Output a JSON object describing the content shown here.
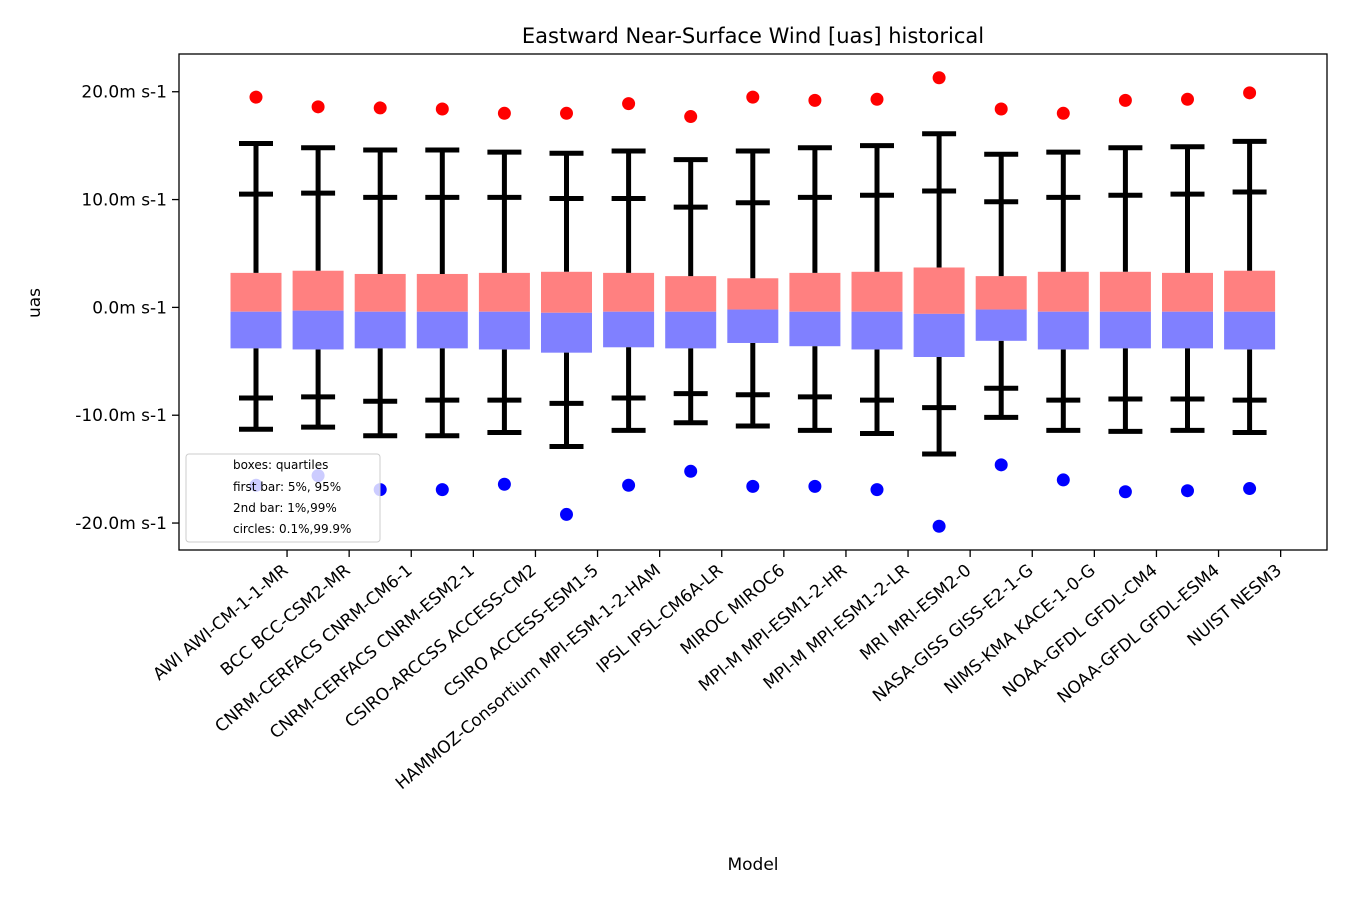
{
  "chart_data": {
    "type": "box",
    "title": "Eastward Near-Surface Wind [uas] historical",
    "xlabel": "Model",
    "ylabel": "uas",
    "ylim": [
      -22.5,
      23.5
    ],
    "yticks": [
      20,
      10,
      0,
      -10,
      -20
    ],
    "ytick_labels": [
      "20.0m s-1",
      "10.0m s-1",
      "0.0m s-1",
      "-10.0m s-1",
      "-20.0m s-1"
    ],
    "colors": {
      "upper_box": "#ff8080",
      "lower_box": "#8080ff",
      "whisker": "#000000",
      "max_circle": "#ff0000",
      "min_circle": "#0000ff"
    },
    "legend": {
      "position": "lower-left",
      "entries": [
        "boxes: quartiles",
        "first bar: 5%, 95%",
        "2nd bar: 1%,99%",
        "circles: 0.1%,99.9%"
      ]
    },
    "categories": [
      "AWI AWI-CM-1-1-MR",
      "BCC BCC-CSM2-MR",
      "CNRM-CERFACS CNRM-CM6-1",
      "CNRM-CERFACS CNRM-ESM2-1",
      "CSIRO-ARCCSS ACCESS-CM2",
      "CSIRO ACCESS-ESM1-5",
      "HAMMOZ-Consortium MPI-ESM-1-2-HAM",
      "IPSL IPSL-CM6A-LR",
      "MIROC MIROC6",
      "MPI-M MPI-ESM1-2-HR",
      "MPI-M MPI-ESM1-2-LR",
      "MRI MRI-ESM2-0",
      "NASA-GISS GISS-E2-1-G",
      "NIMS-KMA KACE-1-0-G",
      "NOAA-GFDL GFDL-CM4",
      "NOAA-GFDL GFDL-ESM4",
      "NUIST NESM3"
    ],
    "series": [
      {
        "name": "q25",
        "values": [
          -3.8,
          -3.9,
          -3.8,
          -3.8,
          -3.9,
          -4.2,
          -3.7,
          -3.8,
          -3.3,
          -3.6,
          -3.9,
          -4.6,
          -3.1,
          -3.9,
          -3.8,
          -3.8,
          -3.9
        ]
      },
      {
        "name": "q50",
        "values": [
          -0.4,
          -0.3,
          -0.4,
          -0.4,
          -0.4,
          -0.5,
          -0.4,
          -0.4,
          -0.2,
          -0.4,
          -0.4,
          -0.6,
          -0.2,
          -0.4,
          -0.4,
          -0.4,
          -0.4
        ]
      },
      {
        "name": "q75",
        "values": [
          3.2,
          3.4,
          3.1,
          3.1,
          3.2,
          3.3,
          3.2,
          2.9,
          2.7,
          3.2,
          3.3,
          3.7,
          2.9,
          3.3,
          3.3,
          3.2,
          3.4
        ]
      },
      {
        "name": "p5",
        "values": [
          -8.4,
          -8.3,
          -8.7,
          -8.6,
          -8.6,
          -8.9,
          -8.4,
          -8.0,
          -8.1,
          -8.3,
          -8.6,
          -9.3,
          -7.5,
          -8.6,
          -8.5,
          -8.5,
          -8.6
        ]
      },
      {
        "name": "p95",
        "values": [
          10.5,
          10.6,
          10.2,
          10.2,
          10.2,
          10.1,
          10.1,
          9.3,
          9.7,
          10.2,
          10.4,
          10.8,
          9.8,
          10.2,
          10.4,
          10.5,
          10.7
        ]
      },
      {
        "name": "p1",
        "values": [
          -11.3,
          -11.1,
          -11.9,
          -11.9,
          -11.6,
          -12.9,
          -11.4,
          -10.7,
          -11.0,
          -11.4,
          -11.7,
          -13.6,
          -10.2,
          -11.4,
          -11.5,
          -11.4,
          -11.6
        ]
      },
      {
        "name": "p99",
        "values": [
          15.2,
          14.8,
          14.6,
          14.6,
          14.4,
          14.3,
          14.5,
          13.7,
          14.5,
          14.8,
          15.0,
          16.1,
          14.2,
          14.4,
          14.8,
          14.9,
          15.4
        ]
      },
      {
        "name": "p0_1",
        "values": [
          -16.5,
          -15.6,
          -16.9,
          -16.9,
          -16.4,
          -19.2,
          -16.5,
          -15.2,
          -16.6,
          -16.6,
          -16.9,
          -20.3,
          -14.6,
          -16.0,
          -17.1,
          -17.0,
          -16.8
        ]
      },
      {
        "name": "p99_9",
        "values": [
          19.5,
          18.6,
          18.5,
          18.4,
          18.0,
          18.0,
          18.9,
          17.7,
          19.5,
          19.2,
          19.3,
          21.3,
          18.4,
          18.0,
          19.2,
          19.3,
          19.9
        ]
      }
    ]
  }
}
